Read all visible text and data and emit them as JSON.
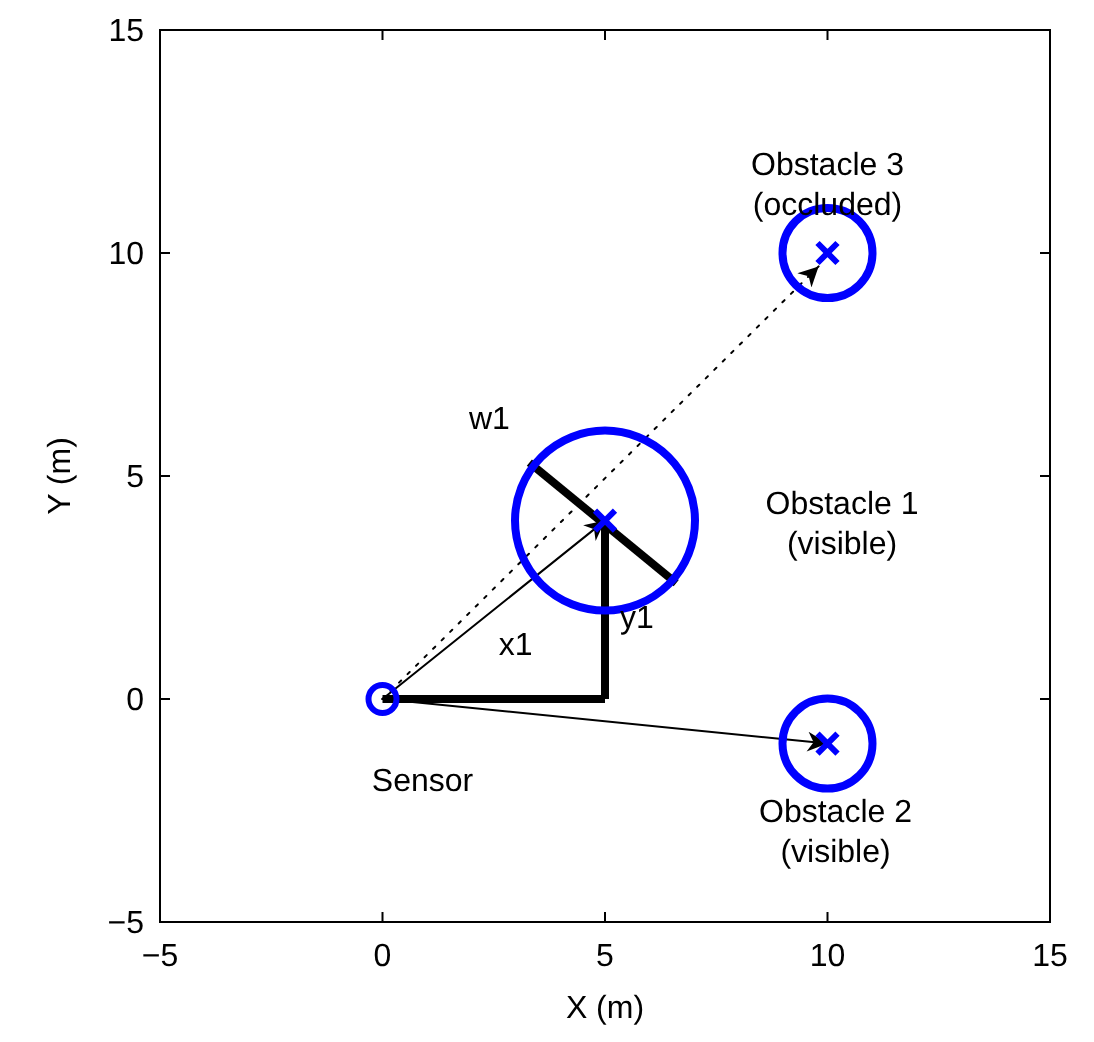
{
  "chart_data": {
    "type": "scatter",
    "xlabel": "X (m)",
    "ylabel": "Y (m)",
    "xlim": [
      -5,
      15
    ],
    "ylim": [
      -5,
      15
    ],
    "xticks": [
      {
        "value": -5,
        "label": "−5"
      },
      0,
      5,
      10,
      15
    ],
    "yticks": [
      {
        "value": -5,
        "label": "−5"
      },
      0,
      5,
      10,
      15
    ],
    "grid": false,
    "series": [
      {
        "type": "bubble",
        "color": "#0000ff",
        "x": [
          5,
          10,
          10
        ],
        "values": [
          4,
          -1,
          10
        ],
        "sizes": [
          1,
          0.25,
          0.25
        ]
      },
      {
        "marker": "cross",
        "color": "#0000ff",
        "x": [
          5,
          10,
          10
        ],
        "values": [
          4,
          -1,
          10
        ]
      },
      {
        "marker": "circle",
        "color": "#0000ff",
        "x": [
          0
        ],
        "values": [
          0
        ]
      },
      {
        "type": "line",
        "color": "#000000",
        "x": [
          0,
          5
        ],
        "values": [
          0,
          0
        ]
      },
      {
        "type": "line",
        "color": "#000000",
        "x": [
          5,
          5
        ],
        "values": [
          0,
          4
        ]
      },
      {
        "type": "line",
        "color": "#000000",
        "x": [
          3.3,
          6.6
        ],
        "values": [
          5.3,
          2.6
        ]
      },
      {
        "type": "line",
        "line_style": "solid",
        "color": "#000000",
        "x": [
          0,
          5
        ],
        "values": [
          0,
          4
        ]
      },
      {
        "type": "line",
        "line_style": "solid",
        "color": "#000000",
        "x": [
          0,
          10
        ],
        "values": [
          0,
          -1
        ]
      },
      {
        "type": "line",
        "line_style": "dotted",
        "color": "#000000",
        "x": [
          0,
          9.8
        ],
        "values": [
          0,
          9.7
        ]
      }
    ],
    "annotations": [
      {
        "text": "Obstacle 3\n(occluded)",
        "x": 10,
        "y": 10
      },
      "Obstacle 1\n(visible)",
      {
        "text": "Obstacle 2\n(visible)",
        "x": 10,
        "y": -1
      },
      {
        "text": "Sensor",
        "x": 0,
        "y": 0
      },
      {
        "text": "x1",
        "x": 2.5,
        "y": 0
      },
      {
        "text": "y1",
        "x": 5,
        "y": 2
      },
      {
        "text": "w1",
        "x": 3.3,
        "y": 5.3
      }
    ]
  }
}
